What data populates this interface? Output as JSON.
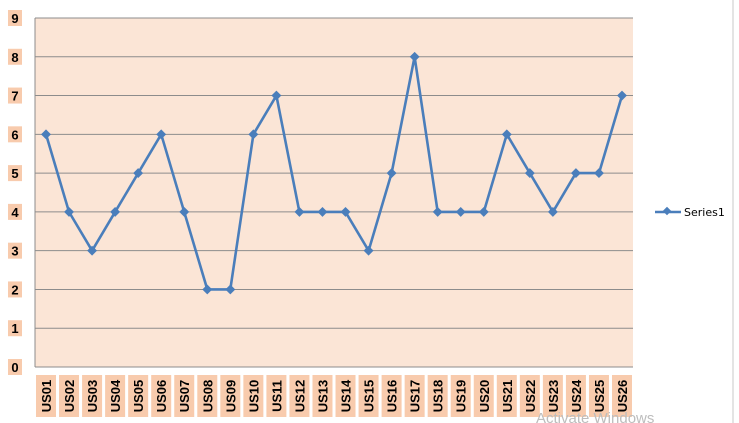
{
  "chart_data": {
    "type": "line",
    "categories": [
      "US01",
      "US02",
      "US03",
      "US04",
      "US05",
      "US06",
      "US07",
      "US08",
      "US09",
      "US10",
      "US11",
      "US12",
      "US13",
      "US14",
      "US15",
      "US16",
      "US17",
      "US18",
      "US19",
      "US20",
      "US21",
      "US22",
      "US23",
      "US24",
      "US25",
      "US26"
    ],
    "series": [
      {
        "name": "Series1",
        "values": [
          6,
          4,
          3,
          4,
          5,
          6,
          4,
          2,
          2,
          6,
          7,
          4,
          4,
          4,
          3,
          5,
          8,
          4,
          4,
          4,
          6,
          5,
          4,
          5,
          5,
          7
        ]
      }
    ],
    "ylim": [
      0,
      9
    ],
    "yticks": [
      0,
      1,
      2,
      3,
      4,
      5,
      6,
      7,
      8,
      9
    ],
    "title": "",
    "xlabel": "",
    "ylabel": "",
    "grid": "horizontal",
    "legend_position": "right",
    "colors": {
      "line": "#4a7ebb",
      "plot_background": "#fbe5d6",
      "label_background": "#f8cbad",
      "gridline": "#8c8c8c"
    }
  },
  "watermark": "Activate Windows"
}
